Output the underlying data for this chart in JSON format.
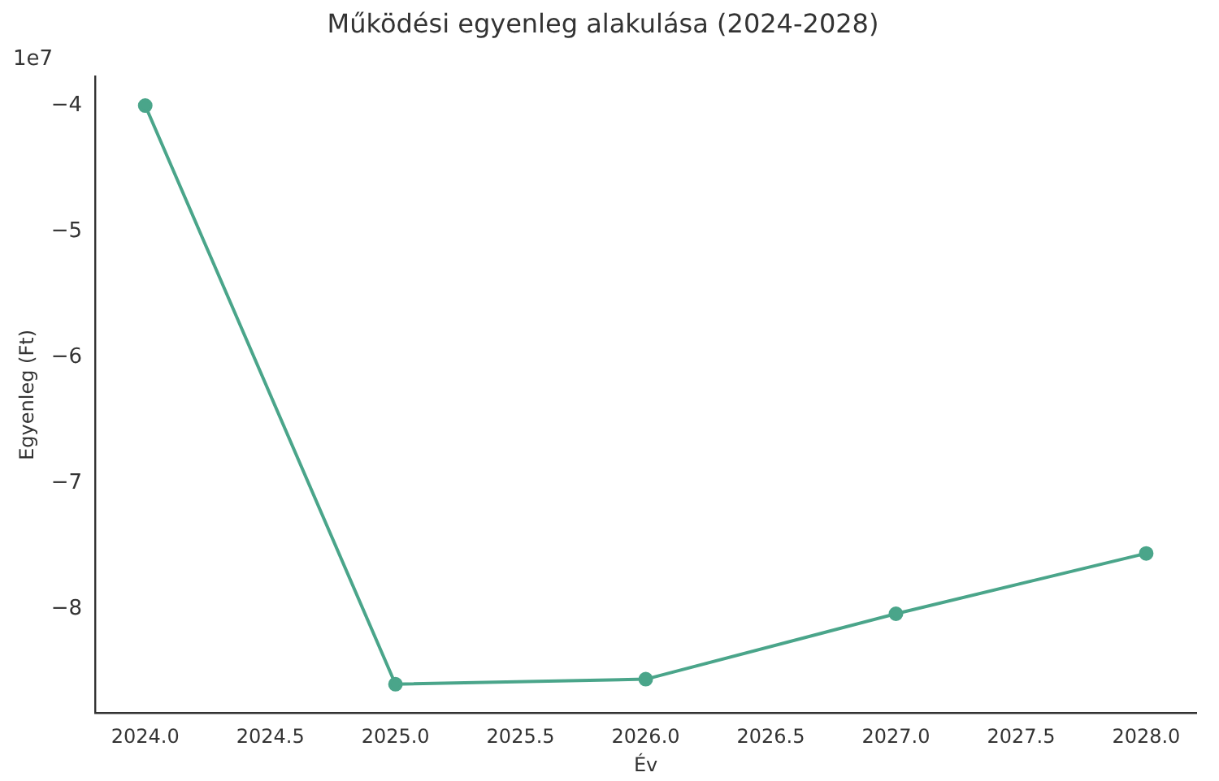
{
  "chart_data": {
    "type": "line",
    "title": "Működési egyenleg alakulása (2024-2028)",
    "xlabel": "Év",
    "ylabel": "Egyenleg (Ft)",
    "annotations": [
      "1e7"
    ],
    "x": [
      2024,
      2025,
      2026,
      2027,
      2028
    ],
    "series": [
      {
        "color": "#4aa58a",
        "values": [
          -4.0,
          -8.6,
          -8.56,
          -8.04,
          -7.56
        ]
      }
    ],
    "xlim": [
      2023.8,
      2028.2
    ],
    "ylim": [
      -8.83,
      -3.77
    ],
    "xticks": [
      {
        "value": 2024,
        "label": "2024.0"
      },
      {
        "value": 2024.5,
        "label": "2024.5"
      },
      {
        "value": 2025,
        "label": "2025.0"
      },
      {
        "value": 2025.5,
        "label": "2025.5"
      },
      {
        "value": 2026,
        "label": "2026.0"
      },
      {
        "value": 2026.5,
        "label": "2026.5"
      },
      {
        "value": 2027,
        "label": "2027.0"
      },
      {
        "value": 2027.5,
        "label": "2027.5"
      },
      {
        "value": 2028,
        "label": "2028.0"
      }
    ],
    "yticks": [
      {
        "value": -8,
        "label": "−8"
      },
      {
        "value": -7,
        "label": "−7"
      },
      {
        "value": -6,
        "label": "−6"
      },
      {
        "value": -5,
        "label": "−5"
      },
      {
        "value": -4,
        "label": "−4"
      }
    ],
    "grid": false,
    "legend": false,
    "marker": "circle",
    "line_style": "solid"
  }
}
